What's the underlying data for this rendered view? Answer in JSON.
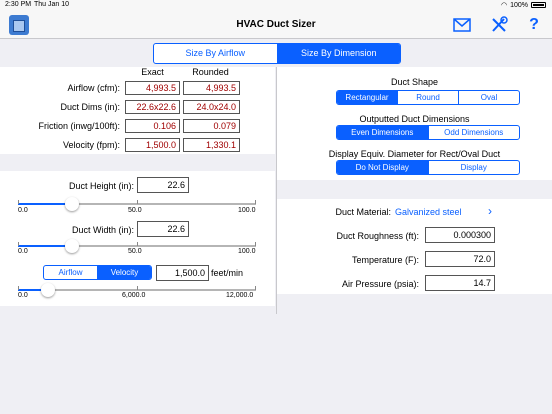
{
  "status": {
    "time": "2:30 PM",
    "date": "Thu Jan 10",
    "battery": "100%"
  },
  "nav": {
    "title": "HVAC Duct Sizer"
  },
  "mode_tabs": {
    "airflow": "Size By Airflow",
    "dimension": "Size By Dimension",
    "selected": "dimension"
  },
  "results": {
    "exact_header": "Exact",
    "rounded_header": "Rounded",
    "rows": [
      {
        "label": "Airflow (cfm):",
        "exact": "4,993.5",
        "rounded": "4,993.5"
      },
      {
        "label": "Duct Dims (in):",
        "exact": "22.6x22.6",
        "rounded": "24.0x24.0"
      },
      {
        "label": "Friction (inwg/100ft):",
        "exact": "0.106",
        "rounded": "0.079"
      },
      {
        "label": "Velocity (fpm):",
        "exact": "1,500.0",
        "rounded": "1,330.1"
      }
    ]
  },
  "duct_shape": {
    "title": "Duct Shape",
    "options": [
      "Rectangular",
      "Round",
      "Oval"
    ],
    "selected": "Rectangular"
  },
  "outputted_dims": {
    "title": "Outputted Duct Dimensions",
    "options": [
      "Even Dimensions",
      "Odd Dimensions"
    ],
    "selected": "Even Dimensions"
  },
  "equiv_diameter": {
    "title": "Display Equiv. Diameter for Rect/Oval Duct",
    "options": [
      "Do Not Display",
      "Display"
    ],
    "selected": "Do Not Display"
  },
  "duct_height": {
    "label": "Duct Height (in):",
    "value": "22.6",
    "min": "0.0",
    "mid": "50.0",
    "max": "100.0",
    "fraction": 0.226
  },
  "duct_width": {
    "label": "Duct Width (in):",
    "value": "22.6",
    "min": "0.0",
    "mid": "50.0",
    "max": "100.0",
    "fraction": 0.226
  },
  "velocity_control": {
    "options": [
      "Airflow",
      "Velocity"
    ],
    "selected": "Velocity",
    "value": "1,500.0",
    "unit": "feet/min",
    "min": "0.0",
    "mid": "6,000.0",
    "max": "12,000.0",
    "fraction": 0.125
  },
  "material": {
    "label": "Duct Material:",
    "value": "Galvanized steel"
  },
  "properties": [
    {
      "label": "Duct Roughness (ft):",
      "value": "0.000300"
    },
    {
      "label": "Temperature (F):",
      "value": "72.0"
    },
    {
      "label": "Air Pressure (psia):",
      "value": "14.7"
    }
  ],
  "colors": {
    "accent": "#0a60ff",
    "value_red": "#a00000"
  }
}
